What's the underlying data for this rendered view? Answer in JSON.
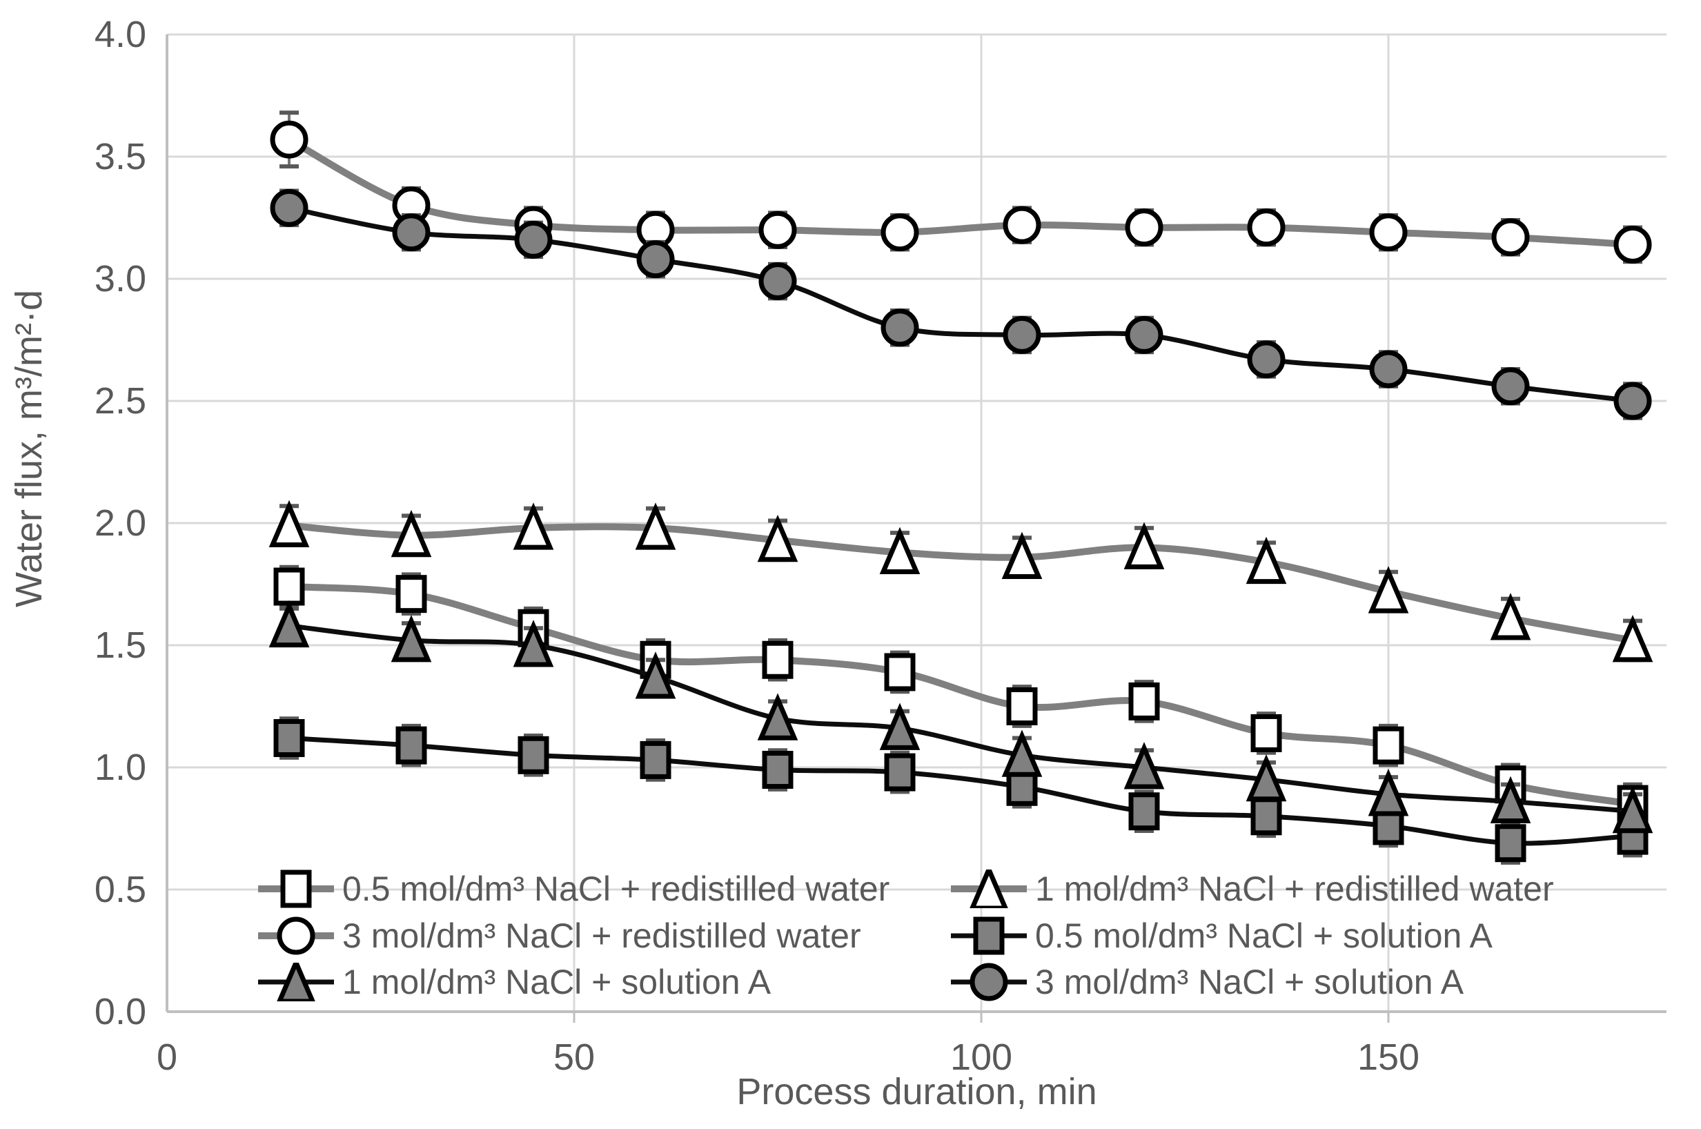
{
  "chart_data": {
    "type": "line",
    "title": "",
    "xlabel": "Process duration, min",
    "ylabel": "Water flux, m³/m²·d",
    "x_tick_labels": [
      "0",
      "50",
      "100",
      "150"
    ],
    "x_tick_values": [
      0,
      50,
      100,
      150
    ],
    "y_tick_labels": [
      "4.0",
      "3.5",
      "3.0",
      "2.5",
      "2.0",
      "1.5",
      "1.0",
      "0.5",
      "0.0"
    ],
    "y_tick_values": [
      4.0,
      3.5,
      3.0,
      2.5,
      2.0,
      1.5,
      1.0,
      0.5,
      0.0
    ],
    "xlim": [
      0,
      184
    ],
    "ylim": [
      0,
      4
    ],
    "grid": true,
    "legend_position": "bottom-inside-two-columns",
    "x": [
      15,
      30,
      45,
      60,
      75,
      90,
      105,
      120,
      135,
      150,
      165,
      180
    ],
    "series": [
      {
        "name": "0.5 mol/dm³ NaCl + redistilled water",
        "marker": "open-square",
        "line_color": "#808080",
        "line_width": 10,
        "marker_fill": "#ffffff",
        "values": [
          1.74,
          1.71,
          1.57,
          1.44,
          1.44,
          1.39,
          1.25,
          1.27,
          1.14,
          1.09,
          0.93,
          0.85
        ],
        "error": 0.08
      },
      {
        "name": "1 mol/dm³ NaCl + redistilled water",
        "marker": "open-triangle",
        "line_color": "#808080",
        "line_width": 10,
        "marker_fill": "#ffffff",
        "values": [
          1.99,
          1.95,
          1.98,
          1.98,
          1.93,
          1.88,
          1.86,
          1.9,
          1.84,
          1.72,
          1.61,
          1.52
        ],
        "error": 0.08
      },
      {
        "name": "3 mol/dm³ NaCl + redistilled water",
        "marker": "open-circle",
        "line_color": "#808080",
        "line_width": 10,
        "marker_fill": "#ffffff",
        "values": [
          3.57,
          3.3,
          3.22,
          3.2,
          3.2,
          3.19,
          3.22,
          3.21,
          3.21,
          3.19,
          3.17,
          3.14
        ],
        "error": [
          0.11,
          0.07,
          0.07,
          0.07,
          0.07,
          0.07,
          0.07,
          0.07,
          0.07,
          0.07,
          0.07,
          0.07
        ]
      },
      {
        "name": "0.5 mol/dm³ NaCl + solution A",
        "marker": "filled-square",
        "line_color": "#0d0d0d",
        "line_width": 7,
        "marker_fill": "#808080",
        "values": [
          1.12,
          1.09,
          1.05,
          1.03,
          0.99,
          0.98,
          0.92,
          0.82,
          0.8,
          0.76,
          0.69,
          0.72
        ],
        "error": 0.08
      },
      {
        "name": "1 mol/dm³ NaCl + solution A",
        "marker": "filled-triangle",
        "line_color": "#0d0d0d",
        "line_width": 7,
        "marker_fill": "#808080",
        "values": [
          1.58,
          1.52,
          1.5,
          1.37,
          1.2,
          1.16,
          1.05,
          1.0,
          0.95,
          0.89,
          0.86,
          0.82
        ],
        "error": 0.07
      },
      {
        "name": "3 mol/dm³ NaCl + solution A",
        "marker": "filled-circle",
        "line_color": "#0d0d0d",
        "line_width": 7,
        "marker_fill": "#808080",
        "values": [
          3.29,
          3.19,
          3.16,
          3.08,
          2.99,
          2.8,
          2.77,
          2.77,
          2.67,
          2.63,
          2.56,
          2.5
        ],
        "error": 0.07
      }
    ]
  },
  "colors": {
    "background": "#ffffff",
    "gridline": "#d9d9d9",
    "axis_line": "#bfbfbf",
    "axis_text": "#595959",
    "marker_stroke": "#000000",
    "error_bar_line": "#737373",
    "error_bar_cap": "#595959",
    "gray_series_line": "#808080",
    "black_series_line": "#0d0d0d"
  }
}
